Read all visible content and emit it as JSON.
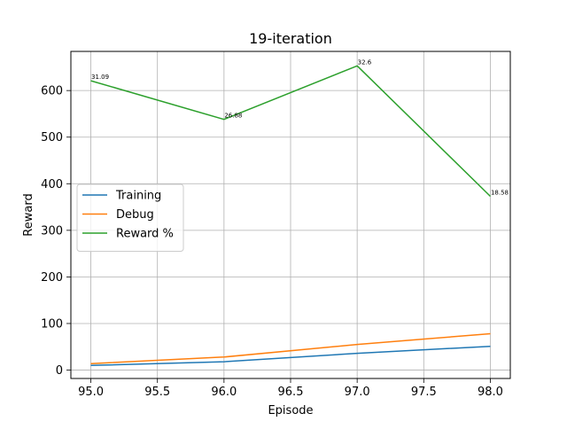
{
  "chart_data": {
    "type": "line",
    "title": "19-iteration",
    "xlabel": "Episode",
    "ylabel": "Reward",
    "x": [
      95.0,
      96.0,
      97.0,
      98.0
    ],
    "xlim": [
      94.85,
      98.15
    ],
    "ylim": [
      -18,
      684
    ],
    "xticks": [
      95.0,
      95.5,
      96.0,
      96.5,
      97.0,
      97.5,
      98.0
    ],
    "xtick_labels": [
      "95.0",
      "95.5",
      "96.0",
      "96.5",
      "97.0",
      "97.5",
      "98.0"
    ],
    "yticks": [
      0,
      100,
      200,
      300,
      400,
      500,
      600
    ],
    "ytick_labels": [
      "0",
      "100",
      "200",
      "300",
      "400",
      "500",
      "600"
    ],
    "grid": true,
    "legend_position": "center-left",
    "series": [
      {
        "name": "Training",
        "color": "#1f77b4",
        "values": [
          10,
          18,
          36,
          51
        ]
      },
      {
        "name": "Debug",
        "color": "#ff7f0e",
        "values": [
          14,
          28,
          55,
          78
        ]
      },
      {
        "name": "Reward %",
        "color": "#2ca02c",
        "values": [
          621,
          538,
          653,
          373
        ],
        "point_labels": [
          "31.09",
          "26.88",
          "32.6",
          "18.58"
        ]
      }
    ]
  }
}
